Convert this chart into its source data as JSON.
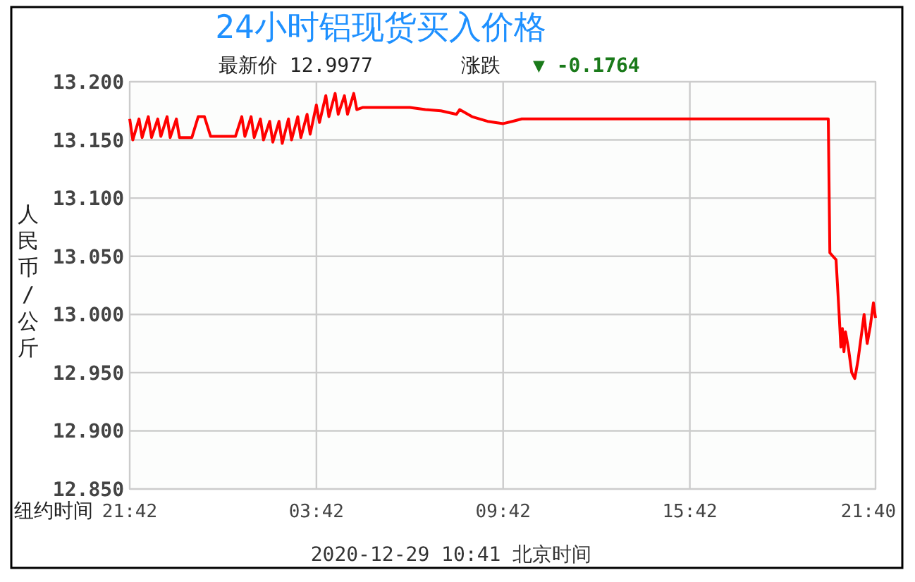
{
  "chart_data": {
    "type": "line",
    "title": "24小时铝现货买入价格",
    "annotations": [
      "最新价 12.9977",
      "涨跌",
      "▼ -0.1764",
      "2020-12-29 10:41 北京时间"
    ],
    "ylabel": "人民币/公斤",
    "xlabel": "纽约时间",
    "xlim": [
      "2020-12-27T21:42",
      "2020-12-28T21:40"
    ],
    "xticks": [
      {
        "value": "2020-12-27T21:42",
        "label": "21:42"
      },
      {
        "value": "2020-12-28T03:42",
        "label": "03:42"
      },
      {
        "value": "2020-12-28T09:42",
        "label": "09:42"
      },
      {
        "value": "2020-12-28T15:42",
        "label": "15:42"
      },
      {
        "value": "2020-12-28T21:40",
        "label": "21:40"
      }
    ],
    "ylim": [
      12.85,
      13.2
    ],
    "yticks": [
      {
        "value": 12.85,
        "label": "12.850"
      },
      {
        "value": 12.9,
        "label": "12.900"
      },
      {
        "value": 12.95,
        "label": "12.950"
      },
      {
        "value": 13.0,
        "label": "13.000"
      },
      {
        "value": 13.05,
        "label": "13.050"
      },
      {
        "value": 13.1,
        "label": "13.100"
      },
      {
        "value": 13.15,
        "label": "13.150"
      },
      {
        "value": 13.2,
        "label": "13.200"
      }
    ],
    "grid": true,
    "series": [
      {
        "color": "#ff0000",
        "x": [
          "2020-12-27T21:42",
          "2020-12-27T21:48",
          "2020-12-27T22:00",
          "2020-12-27T22:06",
          "2020-12-27T22:18",
          "2020-12-27T22:24",
          "2020-12-27T22:36",
          "2020-12-27T22:42",
          "2020-12-27T22:54",
          "2020-12-27T23:00",
          "2020-12-27T23:12",
          "2020-12-27T23:18",
          "2020-12-27T23:42",
          "2020-12-27T23:54",
          "2020-12-28T00:06",
          "2020-12-28T00:18",
          "2020-12-28T01:06",
          "2020-12-28T01:18",
          "2020-12-28T01:24",
          "2020-12-28T01:36",
          "2020-12-28T01:42",
          "2020-12-28T01:54",
          "2020-12-28T02:00",
          "2020-12-28T02:12",
          "2020-12-28T02:18",
          "2020-12-28T02:30",
          "2020-12-28T02:36",
          "2020-12-28T02:48",
          "2020-12-28T02:54",
          "2020-12-28T03:06",
          "2020-12-28T03:12",
          "2020-12-28T03:24",
          "2020-12-28T03:30",
          "2020-12-28T03:42",
          "2020-12-28T03:48",
          "2020-12-28T04:00",
          "2020-12-28T04:06",
          "2020-12-28T04:18",
          "2020-12-28T04:24",
          "2020-12-28T04:36",
          "2020-12-28T04:42",
          "2020-12-28T04:54",
          "2020-12-28T05:00",
          "2020-12-28T05:12",
          "2020-12-28T06:42",
          "2020-12-28T07:12",
          "2020-12-28T07:42",
          "2020-12-28T08:12",
          "2020-12-28T08:18",
          "2020-12-28T08:42",
          "2020-12-28T09:12",
          "2020-12-28T09:42",
          "2020-12-28T10:00",
          "2020-12-28T10:18",
          "2020-12-28T20:09",
          "2020-12-28T20:12",
          "2020-12-28T20:18",
          "2020-12-28T20:24",
          "2020-12-28T20:30",
          "2020-12-28T20:33",
          "2020-12-28T20:36",
          "2020-12-28T20:39",
          "2020-12-28T20:42",
          "2020-12-28T20:48",
          "2020-12-28T20:54",
          "2020-12-28T21:00",
          "2020-12-28T21:06",
          "2020-12-28T21:12",
          "2020-12-28T21:18",
          "2020-12-28T21:24",
          "2020-12-28T21:30",
          "2020-12-28T21:36",
          "2020-12-28T21:40"
        ],
        "values": [
          13.168,
          13.15,
          13.168,
          13.152,
          13.17,
          13.152,
          13.168,
          13.153,
          13.17,
          13.152,
          13.168,
          13.152,
          13.152,
          13.17,
          13.17,
          13.153,
          13.153,
          13.17,
          13.153,
          13.17,
          13.152,
          13.168,
          13.15,
          13.166,
          13.148,
          13.166,
          13.147,
          13.168,
          13.15,
          13.17,
          13.152,
          13.172,
          13.155,
          13.18,
          13.165,
          13.188,
          13.17,
          13.19,
          13.172,
          13.188,
          13.172,
          13.19,
          13.176,
          13.178,
          13.178,
          13.176,
          13.175,
          13.172,
          13.176,
          13.17,
          13.166,
          13.164,
          13.166,
          13.168,
          13.168,
          13.053,
          13.05,
          13.047,
          13.0,
          12.972,
          12.988,
          12.968,
          12.985,
          12.97,
          12.95,
          12.945,
          12.96,
          12.98,
          13.0,
          12.975,
          12.99,
          13.01,
          12.997
        ]
      }
    ]
  }
}
